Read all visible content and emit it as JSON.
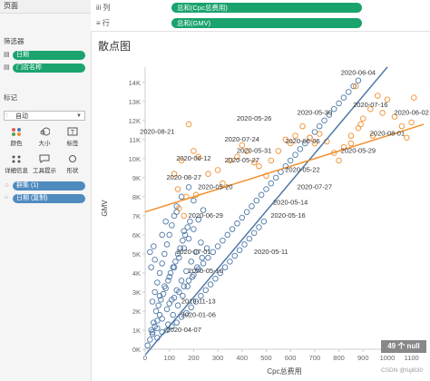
{
  "left_pane": {
    "pages_label": "页面",
    "filters_label": "筛选器",
    "filters": [
      "日期",
      "门店名称"
    ],
    "marks_label": "标记",
    "marks_type": "自动",
    "mark_buttons": [
      {
        "label": "颜色",
        "icon": "color-dots-icon"
      },
      {
        "label": "大小",
        "icon": "size-icon"
      },
      {
        "label": "标签",
        "icon": "label-icon"
      },
      {
        "label": "详细信息",
        "icon": "detail-icon"
      },
      {
        "label": "工具提示",
        "icon": "tooltip-icon"
      },
      {
        "label": "形状",
        "icon": "shape-icon"
      }
    ],
    "mark_fields": [
      "群集 (1)",
      "日期 (复制)"
    ]
  },
  "shelves": {
    "columns_label": "iii 列",
    "columns_field": "总和(Cpc总费用)",
    "rows_label": "行",
    "rows_field": "总和(GMV)"
  },
  "view": {
    "title": "散点图",
    "null_badge": "49 个 null",
    "watermark": "CSDN @fujl830"
  },
  "colors": {
    "cluster_blue": "#4e79a7",
    "cluster_orange": "#f28e2b",
    "pill_green": "#1aa36d"
  },
  "chart_data": {
    "type": "scatter",
    "xlabel": "Cpc总费用",
    "ylabel": "GMV",
    "xlim": [
      0,
      1150
    ],
    "ylim": [
      0,
      14800
    ],
    "xticks": [
      0,
      100,
      200,
      300,
      400,
      500,
      600,
      700,
      800,
      900,
      1000,
      1100
    ],
    "yticks": [
      0,
      1000,
      2000,
      3000,
      4000,
      5000,
      6000,
      7000,
      8000,
      9000,
      10000,
      11000,
      12000,
      13000,
      14000
    ],
    "ytick_labels": [
      "0K",
      "1K",
      "2K",
      "3K",
      "4K",
      "5K",
      "6K",
      "7K",
      "8K",
      "9K",
      "10K",
      "11K",
      "12K",
      "13K",
      "14K"
    ],
    "grid": false,
    "series": [
      {
        "color": "#4e79a7",
        "points": [
          [
            10,
            200
          ],
          [
            20,
            500
          ],
          [
            30,
            900
          ],
          [
            40,
            1200
          ],
          [
            50,
            1500
          ],
          [
            60,
            1800
          ],
          [
            25,
            1000
          ],
          [
            35,
            1400
          ],
          [
            45,
            2000
          ],
          [
            55,
            2300
          ],
          [
            65,
            2600
          ],
          [
            75,
            2900
          ],
          [
            85,
            3200
          ],
          [
            95,
            3600
          ],
          [
            105,
            4000
          ],
          [
            115,
            4300
          ],
          [
            125,
            4600
          ],
          [
            135,
            5000
          ],
          [
            145,
            5300
          ],
          [
            155,
            5700
          ],
          [
            165,
            6000
          ],
          [
            175,
            6400
          ],
          [
            185,
            6700
          ],
          [
            30,
            2500
          ],
          [
            40,
            3000
          ],
          [
            50,
            3500
          ],
          [
            60,
            4000
          ],
          [
            70,
            4500
          ],
          [
            80,
            5000
          ],
          [
            90,
            5500
          ],
          [
            100,
            6000
          ],
          [
            110,
            6500
          ],
          [
            120,
            7000
          ],
          [
            130,
            7500
          ],
          [
            50,
            1100
          ],
          [
            70,
            1600
          ],
          [
            90,
            2100
          ],
          [
            110,
            2600
          ],
          [
            130,
            3100
          ],
          [
            150,
            3600
          ],
          [
            170,
            4100
          ],
          [
            190,
            4600
          ],
          [
            210,
            5100
          ],
          [
            230,
            5600
          ],
          [
            60,
            2800
          ],
          [
            80,
            3300
          ],
          [
            100,
            3800
          ],
          [
            120,
            4300
          ],
          [
            140,
            4800
          ],
          [
            160,
            5300
          ],
          [
            180,
            5800
          ],
          [
            200,
            6300
          ],
          [
            220,
            6800
          ],
          [
            240,
            7300
          ],
          [
            95,
            1300
          ],
          [
            115,
            1800
          ],
          [
            135,
            2300
          ],
          [
            155,
            2800
          ],
          [
            175,
            3300
          ],
          [
            195,
            3800
          ],
          [
            215,
            4300
          ],
          [
            235,
            4800
          ],
          [
            255,
            5300
          ],
          [
            20,
            5100
          ],
          [
            25,
            4300
          ],
          [
            40,
            4700
          ],
          [
            35,
            5400
          ],
          [
            70,
            6000
          ],
          [
            85,
            6700
          ],
          [
            130,
            7200
          ],
          [
            150,
            8000
          ],
          [
            180,
            8500
          ],
          [
            200,
            7800
          ],
          [
            160,
            6200
          ],
          [
            30,
            800
          ],
          [
            50,
            600
          ],
          [
            70,
            900
          ],
          [
            90,
            1000
          ],
          [
            110,
            1200
          ],
          [
            130,
            1400
          ],
          [
            150,
            1700
          ],
          [
            170,
            1900
          ],
          [
            190,
            2200
          ],
          [
            210,
            2500
          ],
          [
            230,
            2800
          ],
          [
            250,
            3100
          ],
          [
            270,
            3400
          ],
          [
            290,
            3700
          ],
          [
            310,
            4000
          ],
          [
            330,
            4300
          ],
          [
            350,
            4600
          ],
          [
            370,
            4900
          ],
          [
            390,
            5200
          ],
          [
            410,
            5500
          ],
          [
            430,
            5800
          ],
          [
            450,
            6100
          ],
          [
            470,
            6400
          ],
          [
            490,
            6700
          ],
          [
            100,
            2400
          ],
          [
            120,
            2700
          ],
          [
            140,
            3000
          ],
          [
            160,
            3300
          ],
          [
            180,
            3600
          ],
          [
            200,
            3900
          ],
          [
            220,
            4200
          ],
          [
            240,
            4500
          ],
          [
            260,
            4800
          ],
          [
            280,
            5100
          ],
          [
            300,
            5400
          ],
          [
            320,
            5700
          ],
          [
            340,
            6000
          ],
          [
            360,
            6300
          ],
          [
            380,
            6600
          ],
          [
            400,
            6900
          ],
          [
            420,
            7200
          ],
          [
            440,
            7500
          ],
          [
            460,
            7800
          ],
          [
            480,
            8100
          ],
          [
            500,
            8400
          ],
          [
            520,
            8700
          ],
          [
            540,
            9000
          ],
          [
            560,
            9300
          ],
          [
            580,
            9600
          ],
          [
            600,
            9900
          ],
          [
            620,
            10200
          ],
          [
            640,
            10500
          ],
          [
            660,
            10800
          ],
          [
            680,
            11100
          ],
          [
            700,
            11400
          ],
          [
            720,
            11700
          ],
          [
            740,
            12000
          ],
          [
            760,
            12300
          ],
          [
            780,
            12600
          ],
          [
            800,
            12900
          ],
          [
            820,
            13200
          ],
          [
            840,
            13500
          ],
          [
            860,
            13800
          ],
          [
            880,
            14100
          ]
        ]
      },
      {
        "color": "#f28e2b",
        "points": [
          [
            180,
            11800
          ],
          [
            200,
            10400
          ],
          [
            150,
            9900
          ],
          [
            220,
            10100
          ],
          [
            120,
            9200
          ],
          [
            135,
            8400
          ],
          [
            170,
            8000
          ],
          [
            140,
            7400
          ],
          [
            160,
            7000
          ],
          [
            210,
            8100
          ],
          [
            260,
            9200
          ],
          [
            300,
            9400
          ],
          [
            320,
            8700
          ],
          [
            350,
            9900
          ],
          [
            380,
            10100
          ],
          [
            400,
            10700
          ],
          [
            420,
            10400
          ],
          [
            450,
            9800
          ],
          [
            470,
            9600
          ],
          [
            500,
            9100
          ],
          [
            520,
            9900
          ],
          [
            550,
            10400
          ],
          [
            580,
            11000
          ],
          [
            600,
            10800
          ],
          [
            620,
            11200
          ],
          [
            650,
            11700
          ],
          [
            680,
            11100
          ],
          [
            700,
            10800
          ],
          [
            720,
            11300
          ],
          [
            750,
            10900
          ],
          [
            780,
            10300
          ],
          [
            800,
            9900
          ],
          [
            820,
            10600
          ],
          [
            850,
            11200
          ],
          [
            880,
            11600
          ],
          [
            900,
            12100
          ],
          [
            930,
            12600
          ],
          [
            960,
            13300
          ],
          [
            980,
            12400
          ],
          [
            1000,
            13100
          ],
          [
            1030,
            12200
          ],
          [
            1060,
            11700
          ],
          [
            1080,
            11100
          ],
          [
            1100,
            11900
          ],
          [
            1110,
            13200
          ],
          [
            940,
            11200
          ],
          [
            890,
            11800
          ],
          [
            870,
            13800
          ],
          [
            850,
            10800
          ]
        ]
      }
    ],
    "trend_lines": [
      {
        "color": "#4e79a7",
        "from": [
          0,
          -300
        ],
        "to": [
          1000,
          14800
        ]
      },
      {
        "color": "#f28e2b",
        "from": [
          0,
          7200
        ],
        "to": [
          1150,
          11800
        ]
      }
    ],
    "annotations": [
      {
        "text": "2020-06-04",
        "x": 880,
        "y": 14400
      },
      {
        "text": "2020-07-16",
        "x": 930,
        "y": 12700
      },
      {
        "text": "2020-05-30",
        "x": 700,
        "y": 12300
      },
      {
        "text": "2020-06-02",
        "x": 1100,
        "y": 12300
      },
      {
        "text": "2020-05-26",
        "x": 450,
        "y": 12000
      },
      {
        "text": "2020-08-01",
        "x": 1000,
        "y": 11200
      },
      {
        "text": "2020-08-21",
        "x": 50,
        "y": 11300
      },
      {
        "text": "2020-07-24",
        "x": 400,
        "y": 10900
      },
      {
        "text": "2020-06-06",
        "x": 650,
        "y": 10800
      },
      {
        "text": "2020-05-31",
        "x": 450,
        "y": 10300
      },
      {
        "text": "2020-05-29",
        "x": 880,
        "y": 10300
      },
      {
        "text": "2020-06-12",
        "x": 200,
        "y": 9900
      },
      {
        "text": "2020-05-27",
        "x": 400,
        "y": 9800
      },
      {
        "text": "2020-05-22",
        "x": 650,
        "y": 9300
      },
      {
        "text": "2020-08-27",
        "x": 160,
        "y": 8900
      },
      {
        "text": "2020-05-20",
        "x": 290,
        "y": 8400
      },
      {
        "text": "2020-07-27",
        "x": 700,
        "y": 8400
      },
      {
        "text": "2020-05-14",
        "x": 600,
        "y": 7600
      },
      {
        "text": "2020-05-16",
        "x": 590,
        "y": 6900
      },
      {
        "text": "2020-06-29",
        "x": 250,
        "y": 6900
      },
      {
        "text": "2020-07-01",
        "x": 200,
        "y": 5000
      },
      {
        "text": "2020-05-11",
        "x": 520,
        "y": 5000
      },
      {
        "text": "2020-05-10",
        "x": 250,
        "y": 4000
      },
      {
        "text": "2019-11-13",
        "x": 220,
        "y": 2400
      },
      {
        "text": "2020-01-06",
        "x": 220,
        "y": 1700
      },
      {
        "text": "2020-04-07",
        "x": 160,
        "y": 900
      }
    ]
  }
}
